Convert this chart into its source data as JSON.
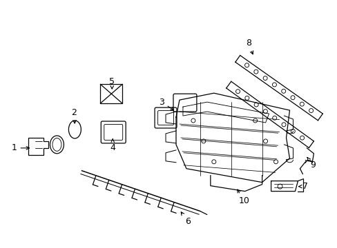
{
  "background": "#ffffff",
  "line_color": "#000000",
  "figsize": [
    4.89,
    3.6
  ],
  "dpi": 100,
  "lw": 0.9
}
